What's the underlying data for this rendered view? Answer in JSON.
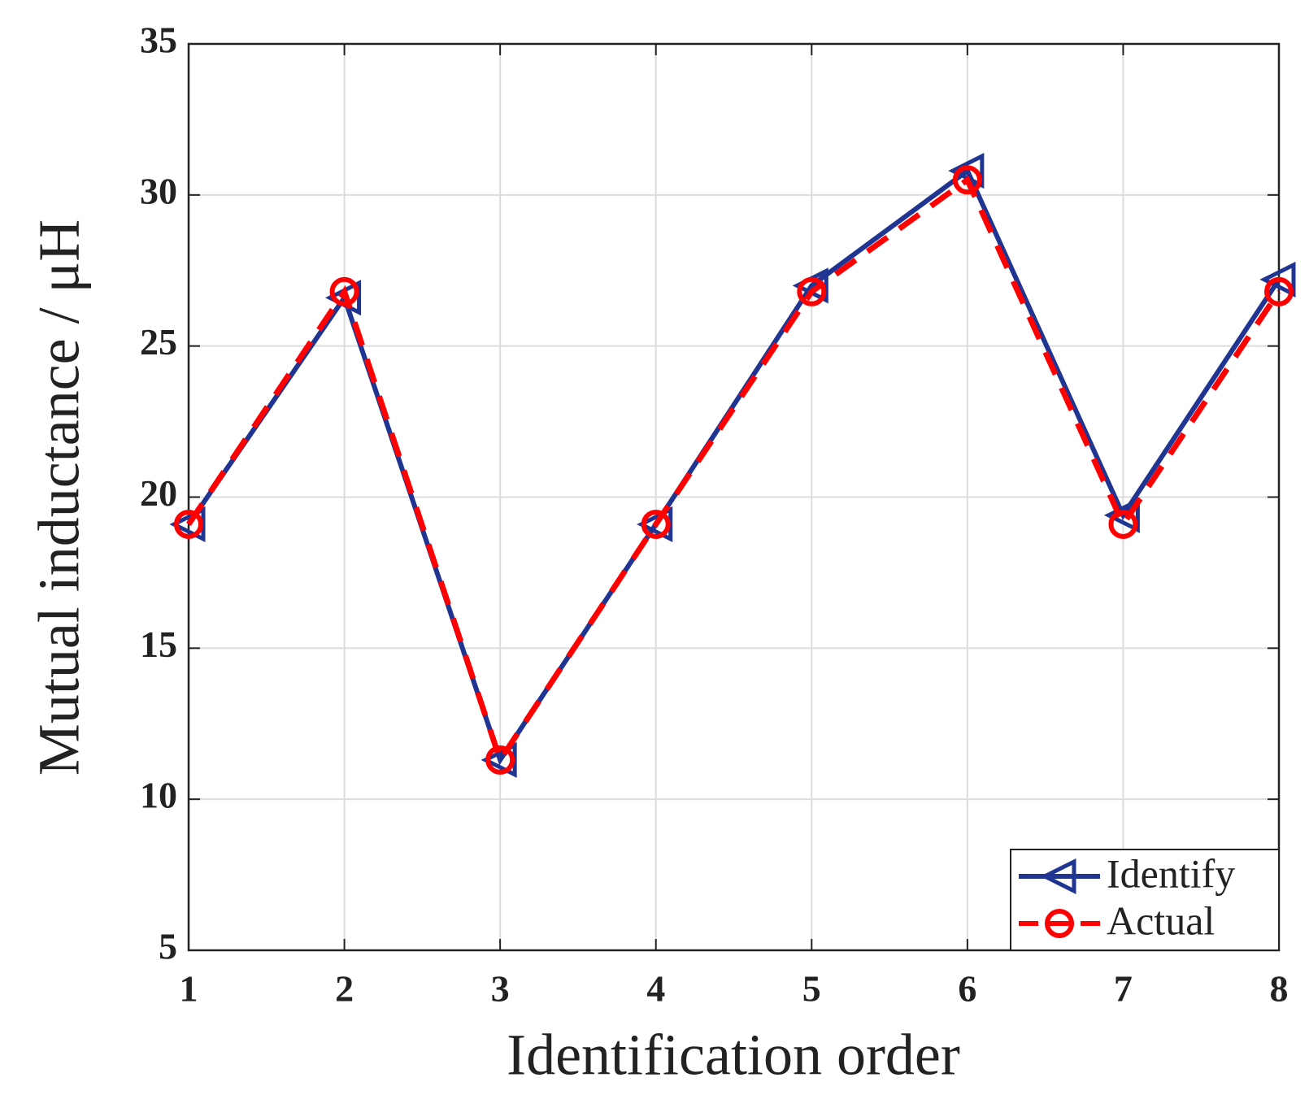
{
  "chart_data": {
    "type": "line",
    "x_label": "Identification order",
    "y_label": "Mutual inductance / μH",
    "x": [
      1,
      2,
      3,
      4,
      5,
      6,
      7,
      8
    ],
    "series": [
      {
        "name": "Identify",
        "color": "#1f3591",
        "linestyle": "solid",
        "marker": "triangle-left",
        "values": [
          19.1,
          26.6,
          11.3,
          19.1,
          27.0,
          30.8,
          19.4,
          27.2
        ]
      },
      {
        "name": "Actual",
        "color": "#ff0000",
        "linestyle": "dashed",
        "marker": "circle",
        "values": [
          19.1,
          26.8,
          11.3,
          19.1,
          26.8,
          30.5,
          19.1,
          26.8
        ]
      }
    ],
    "xlim": [
      1,
      8
    ],
    "xticks": [
      1,
      2,
      3,
      4,
      5,
      6,
      7,
      8
    ],
    "ylim": [
      5,
      35
    ],
    "yticks": [
      5,
      10,
      15,
      20,
      25,
      30,
      35
    ],
    "grid": true,
    "legend": "lower right"
  }
}
